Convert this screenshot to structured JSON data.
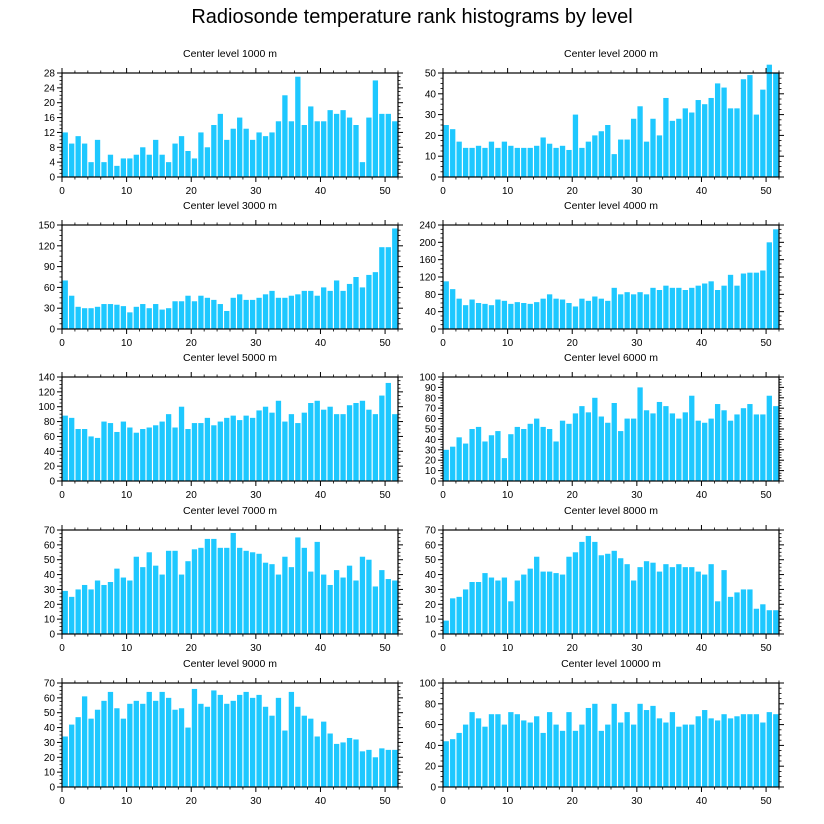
{
  "title": "Radiosonde temperature rank histograms by level",
  "colors": {
    "bar": "#1ec8ff",
    "axis": "#000000"
  },
  "chart_data": [
    {
      "type": "bar",
      "title": "Center level 1000 m",
      "x": [
        0,
        1,
        2,
        3,
        4,
        5,
        6,
        7,
        8,
        9,
        10,
        11,
        12,
        13,
        14,
        15,
        16,
        17,
        18,
        19,
        20,
        21,
        22,
        23,
        24,
        25,
        26,
        27,
        28,
        29,
        30,
        31,
        32,
        33,
        34,
        35,
        36,
        37,
        38,
        39,
        40,
        41,
        42,
        43,
        44,
        45,
        46,
        47,
        48,
        49,
        50,
        51
      ],
      "values": [
        12,
        9,
        11,
        9,
        4,
        10,
        4,
        6,
        3,
        5,
        5,
        6,
        8,
        6,
        10,
        6,
        4,
        9,
        11,
        7,
        5,
        12,
        8,
        14,
        17,
        10,
        13,
        16,
        13,
        10,
        12,
        11,
        12,
        15,
        22,
        15,
        27,
        14,
        19,
        15,
        15,
        18,
        17,
        18,
        16,
        14,
        4,
        16,
        26,
        17,
        17,
        15
      ],
      "xlim": [
        0,
        52
      ],
      "ylim": [
        0,
        28
      ],
      "yticks": [
        0,
        4,
        8,
        12,
        16,
        20,
        24,
        28
      ],
      "xticks": [
        0,
        10,
        20,
        30,
        40,
        50
      ]
    },
    {
      "type": "bar",
      "title": "Center level 2000 m",
      "x": [
        0,
        1,
        2,
        3,
        4,
        5,
        6,
        7,
        8,
        9,
        10,
        11,
        12,
        13,
        14,
        15,
        16,
        17,
        18,
        19,
        20,
        21,
        22,
        23,
        24,
        25,
        26,
        27,
        28,
        29,
        30,
        31,
        32,
        33,
        34,
        35,
        36,
        37,
        38,
        39,
        40,
        41,
        42,
        43,
        44,
        45,
        46,
        47,
        48,
        49,
        50,
        51
      ],
      "values": [
        25,
        23,
        17,
        14,
        14,
        15,
        14,
        17,
        14,
        17,
        15,
        14,
        14,
        14,
        15,
        19,
        16,
        14,
        15,
        13,
        30,
        14,
        17,
        20,
        22,
        25,
        11,
        18,
        18,
        28,
        34,
        17,
        28,
        20,
        38,
        27,
        28,
        33,
        31,
        37,
        35,
        38,
        45,
        43,
        33,
        33,
        47,
        49,
        30,
        42,
        54,
        50
      ],
      "xlim": [
        0,
        52
      ],
      "ylim": [
        0,
        50
      ],
      "yticks": [
        0,
        10,
        20,
        30,
        40,
        50
      ],
      "xticks": [
        0,
        10,
        20,
        30,
        40,
        50
      ]
    },
    {
      "type": "bar",
      "title": "Center level 3000 m",
      "x": [
        0,
        1,
        2,
        3,
        4,
        5,
        6,
        7,
        8,
        9,
        10,
        11,
        12,
        13,
        14,
        15,
        16,
        17,
        18,
        19,
        20,
        21,
        22,
        23,
        24,
        25,
        26,
        27,
        28,
        29,
        30,
        31,
        32,
        33,
        34,
        35,
        36,
        37,
        38,
        39,
        40,
        41,
        42,
        43,
        44,
        45,
        46,
        47,
        48,
        49,
        50,
        51
      ],
      "values": [
        70,
        48,
        32,
        30,
        30,
        32,
        36,
        36,
        35,
        33,
        24,
        32,
        36,
        30,
        36,
        28,
        30,
        40,
        40,
        48,
        40,
        48,
        45,
        42,
        36,
        26,
        45,
        50,
        42,
        42,
        45,
        50,
        55,
        45,
        45,
        48,
        50,
        55,
        55,
        48,
        60,
        55,
        70,
        55,
        65,
        75,
        60,
        78,
        82,
        118,
        118,
        145
      ],
      "xlim": [
        0,
        52
      ],
      "ylim": [
        0,
        150
      ],
      "yticks": [
        0,
        30,
        60,
        90,
        120,
        150
      ],
      "xticks": [
        0,
        10,
        20,
        30,
        40,
        50
      ]
    },
    {
      "type": "bar",
      "title": "Center level 4000 m",
      "x": [
        0,
        1,
        2,
        3,
        4,
        5,
        6,
        7,
        8,
        9,
        10,
        11,
        12,
        13,
        14,
        15,
        16,
        17,
        18,
        19,
        20,
        21,
        22,
        23,
        24,
        25,
        26,
        27,
        28,
        29,
        30,
        31,
        32,
        33,
        34,
        35,
        36,
        37,
        38,
        39,
        40,
        41,
        42,
        43,
        44,
        45,
        46,
        47,
        48,
        49,
        50,
        51
      ],
      "values": [
        110,
        92,
        70,
        55,
        68,
        60,
        58,
        55,
        68,
        65,
        58,
        62,
        60,
        58,
        62,
        70,
        80,
        70,
        68,
        60,
        52,
        70,
        65,
        75,
        70,
        65,
        95,
        80,
        85,
        80,
        85,
        80,
        95,
        90,
        100,
        95,
        95,
        90,
        95,
        100,
        105,
        110,
        90,
        100,
        125,
        100,
        128,
        130,
        130,
        135,
        200,
        230
      ],
      "xlim": [
        0,
        52
      ],
      "ylim": [
        0,
        240
      ],
      "yticks": [
        0,
        40,
        80,
        120,
        160,
        200,
        240
      ],
      "xticks": [
        0,
        10,
        20,
        30,
        40,
        50
      ]
    },
    {
      "type": "bar",
      "title": "Center level 5000 m",
      "x": [
        0,
        1,
        2,
        3,
        4,
        5,
        6,
        7,
        8,
        9,
        10,
        11,
        12,
        13,
        14,
        15,
        16,
        17,
        18,
        19,
        20,
        21,
        22,
        23,
        24,
        25,
        26,
        27,
        28,
        29,
        30,
        31,
        32,
        33,
        34,
        35,
        36,
        37,
        38,
        39,
        40,
        41,
        42,
        43,
        44,
        45,
        46,
        47,
        48,
        49,
        50,
        51
      ],
      "values": [
        88,
        85,
        70,
        70,
        60,
        58,
        80,
        78,
        66,
        80,
        72,
        65,
        70,
        72,
        75,
        80,
        90,
        72,
        100,
        70,
        78,
        78,
        85,
        75,
        80,
        85,
        88,
        82,
        88,
        85,
        95,
        100,
        92,
        108,
        80,
        90,
        78,
        92,
        105,
        108,
        96,
        100,
        90,
        90,
        102,
        105,
        108,
        96,
        90,
        115,
        132,
        90
      ],
      "xlim": [
        0,
        52
      ],
      "ylim": [
        0,
        140
      ],
      "yticks": [
        0,
        20,
        40,
        60,
        80,
        100,
        120,
        140
      ],
      "xticks": [
        0,
        10,
        20,
        30,
        40,
        50
      ]
    },
    {
      "type": "bar",
      "title": "Center level 6000 m",
      "x": [
        0,
        1,
        2,
        3,
        4,
        5,
        6,
        7,
        8,
        9,
        10,
        11,
        12,
        13,
        14,
        15,
        16,
        17,
        18,
        19,
        20,
        21,
        22,
        23,
        24,
        25,
        26,
        27,
        28,
        29,
        30,
        31,
        32,
        33,
        34,
        35,
        36,
        37,
        38,
        39,
        40,
        41,
        42,
        43,
        44,
        45,
        46,
        47,
        48,
        49,
        50,
        51
      ],
      "values": [
        30,
        33,
        42,
        36,
        50,
        52,
        38,
        44,
        48,
        22,
        45,
        52,
        50,
        55,
        60,
        52,
        50,
        38,
        58,
        55,
        65,
        72,
        66,
        80,
        62,
        56,
        75,
        48,
        60,
        60,
        90,
        68,
        65,
        76,
        72,
        65,
        60,
        66,
        82,
        58,
        56,
        60,
        74,
        68,
        58,
        64,
        70,
        74,
        64,
        64,
        82,
        72
      ],
      "xlim": [
        0,
        52
      ],
      "ylim": [
        0,
        100
      ],
      "yticks": [
        0,
        10,
        20,
        30,
        40,
        50,
        60,
        70,
        80,
        90,
        100
      ],
      "xticks": [
        0,
        10,
        20,
        30,
        40,
        50
      ]
    },
    {
      "type": "bar",
      "title": "Center level 7000 m",
      "x": [
        0,
        1,
        2,
        3,
        4,
        5,
        6,
        7,
        8,
        9,
        10,
        11,
        12,
        13,
        14,
        15,
        16,
        17,
        18,
        19,
        20,
        21,
        22,
        23,
        24,
        25,
        26,
        27,
        28,
        29,
        30,
        31,
        32,
        33,
        34,
        35,
        36,
        37,
        38,
        39,
        40,
        41,
        42,
        43,
        44,
        45,
        46,
        47,
        48,
        49,
        50,
        51
      ],
      "values": [
        29,
        25,
        30,
        33,
        30,
        36,
        33,
        35,
        44,
        38,
        36,
        52,
        45,
        55,
        46,
        40,
        56,
        56,
        40,
        49,
        57,
        58,
        64,
        64,
        58,
        58,
        68,
        58,
        56,
        55,
        54,
        48,
        47,
        40,
        52,
        45,
        65,
        58,
        42,
        62,
        40,
        33,
        43,
        38,
        46,
        36,
        52,
        50,
        32,
        43,
        37,
        36
      ],
      "xlim": [
        0,
        52
      ],
      "ylim": [
        0,
        70
      ],
      "yticks": [
        0,
        10,
        20,
        30,
        40,
        50,
        60,
        70
      ],
      "xticks": [
        0,
        10,
        20,
        30,
        40,
        50
      ]
    },
    {
      "type": "bar",
      "title": "Center level 8000 m",
      "x": [
        0,
        1,
        2,
        3,
        4,
        5,
        6,
        7,
        8,
        9,
        10,
        11,
        12,
        13,
        14,
        15,
        16,
        17,
        18,
        19,
        20,
        21,
        22,
        23,
        24,
        25,
        26,
        27,
        28,
        29,
        30,
        31,
        32,
        33,
        34,
        35,
        36,
        37,
        38,
        39,
        40,
        41,
        42,
        43,
        44,
        45,
        46,
        47,
        48,
        49,
        50,
        51
      ],
      "values": [
        9,
        24,
        25,
        30,
        35,
        35,
        41,
        38,
        36,
        38,
        22,
        36,
        40,
        44,
        52,
        42,
        42,
        41,
        40,
        52,
        55,
        62,
        66,
        62,
        53,
        54,
        56,
        51,
        47,
        36,
        45,
        49,
        48,
        42,
        47,
        45,
        47,
        45,
        45,
        42,
        40,
        47,
        22,
        43,
        25,
        28,
        30,
        30,
        17,
        20,
        16,
        16
      ],
      "xlim": [
        0,
        52
      ],
      "ylim": [
        0,
        70
      ],
      "yticks": [
        0,
        10,
        20,
        30,
        40,
        50,
        60,
        70
      ],
      "xticks": [
        0,
        10,
        20,
        30,
        40,
        50
      ]
    },
    {
      "type": "bar",
      "title": "Center level 9000 m",
      "x": [
        0,
        1,
        2,
        3,
        4,
        5,
        6,
        7,
        8,
        9,
        10,
        11,
        12,
        13,
        14,
        15,
        16,
        17,
        18,
        19,
        20,
        21,
        22,
        23,
        24,
        25,
        26,
        27,
        28,
        29,
        30,
        31,
        32,
        33,
        34,
        35,
        36,
        37,
        38,
        39,
        40,
        41,
        42,
        43,
        44,
        45,
        46,
        47,
        48,
        49,
        50,
        51
      ],
      "values": [
        34,
        42,
        47,
        61,
        46,
        52,
        58,
        64,
        53,
        46,
        56,
        58,
        56,
        64,
        58,
        64,
        60,
        52,
        53,
        40,
        66,
        56,
        54,
        65,
        62,
        56,
        58,
        62,
        64,
        60,
        62,
        54,
        48,
        60,
        38,
        64,
        54,
        48,
        46,
        34,
        44,
        36,
        29,
        30,
        33,
        32,
        24,
        25,
        20,
        26,
        25,
        25
      ],
      "xlim": [
        0,
        52
      ],
      "ylim": [
        0,
        70
      ],
      "yticks": [
        0,
        10,
        20,
        30,
        40,
        50,
        60,
        70
      ],
      "xticks": [
        0,
        10,
        20,
        30,
        40,
        50
      ]
    },
    {
      "type": "bar",
      "title": "Center level 10000 m",
      "x": [
        0,
        1,
        2,
        3,
        4,
        5,
        6,
        7,
        8,
        9,
        10,
        11,
        12,
        13,
        14,
        15,
        16,
        17,
        18,
        19,
        20,
        21,
        22,
        23,
        24,
        25,
        26,
        27,
        28,
        29,
        30,
        31,
        32,
        33,
        34,
        35,
        36,
        37,
        38,
        39,
        40,
        41,
        42,
        43,
        44,
        45,
        46,
        47,
        48,
        49,
        50,
        51
      ],
      "values": [
        44,
        46,
        52,
        60,
        72,
        66,
        58,
        70,
        70,
        60,
        72,
        70,
        64,
        62,
        68,
        52,
        72,
        60,
        54,
        72,
        54,
        60,
        76,
        80,
        54,
        60,
        80,
        62,
        72,
        60,
        80,
        74,
        78,
        66,
        62,
        72,
        58,
        60,
        60,
        68,
        74,
        66,
        64,
        70,
        66,
        68,
        70,
        70,
        70,
        62,
        72,
        70
      ],
      "xlim": [
        0,
        52
      ],
      "ylim": [
        0,
        100
      ],
      "yticks": [
        0,
        20,
        40,
        60,
        80,
        100
      ],
      "xticks": [
        0,
        10,
        20,
        30,
        40,
        50
      ]
    }
  ]
}
